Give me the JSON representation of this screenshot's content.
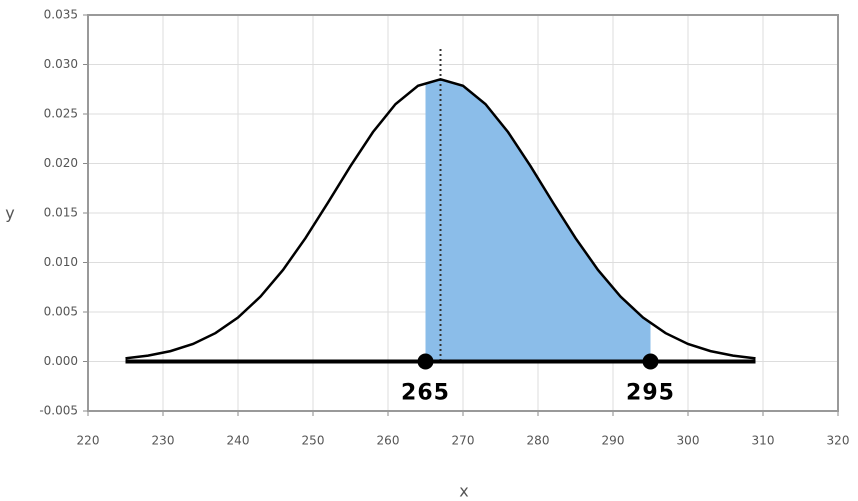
{
  "chart_data": {
    "type": "area-under-curve",
    "x_label": "x",
    "y_label": "y",
    "x": [
      225,
      228,
      231,
      234,
      237,
      240,
      243,
      246,
      249,
      252,
      255,
      258,
      261,
      264,
      267,
      270,
      273,
      276,
      279,
      282,
      285,
      288,
      291,
      294,
      297,
      300,
      303,
      306,
      309
    ],
    "values": [
      0.00032,
      0.00059,
      0.00105,
      0.00177,
      0.00287,
      0.00444,
      0.00656,
      0.00925,
      0.01247,
      0.01605,
      0.01974,
      0.02318,
      0.026,
      0.02785,
      0.0285,
      0.02785,
      0.026,
      0.02318,
      0.01974,
      0.01605,
      0.01247,
      0.00925,
      0.00656,
      0.00444,
      0.00287,
      0.00177,
      0.00105,
      0.00059,
      0.00032
    ],
    "color": "#000000",
    "shade": {
      "from": 265,
      "to": 295,
      "color": "#8bbde9"
    },
    "markers": [
      265,
      295
    ],
    "mean": 267,
    "xlim": [
      220,
      320
    ],
    "xticks": [
      220,
      230,
      240,
      250,
      260,
      270,
      280,
      290,
      300,
      310,
      320
    ],
    "ylim": [
      -0.005,
      0.035
    ],
    "yticks": [
      -0.005,
      {
        "value": 0,
        "label": "0.000"
      },
      0.005,
      {
        "value": 0.01,
        "label": "0.010"
      },
      0.015,
      {
        "value": 0.02,
        "label": "0.020"
      },
      0.025,
      {
        "value": 0.03,
        "label": "0.030"
      },
      0.035
    ],
    "grid": true
  }
}
